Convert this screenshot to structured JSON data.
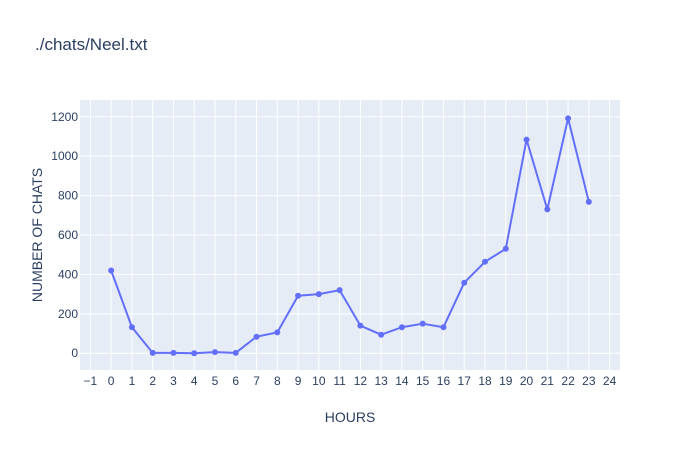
{
  "chart_data": {
    "type": "line",
    "title": "./chats/Neel.txt",
    "xlabel": "HOURS",
    "ylabel": "NUMBER OF CHATS",
    "xlim": [
      -1.5,
      24.5
    ],
    "ylim": [
      -85,
      1285
    ],
    "x_ticks": [
      -1,
      0,
      1,
      2,
      3,
      4,
      5,
      6,
      7,
      8,
      9,
      10,
      11,
      12,
      13,
      14,
      15,
      16,
      17,
      18,
      19,
      20,
      21,
      22,
      23,
      24
    ],
    "x_tick_labels": [
      "−1",
      "0",
      "1",
      "2",
      "3",
      "4",
      "5",
      "6",
      "7",
      "8",
      "9",
      "10",
      "11",
      "12",
      "13",
      "14",
      "15",
      "16",
      "17",
      "18",
      "19",
      "20",
      "21",
      "22",
      "23",
      "24"
    ],
    "y_ticks": [
      0,
      200,
      400,
      600,
      800,
      1000,
      1200
    ],
    "y_tick_labels": [
      "0",
      "200",
      "400",
      "600",
      "800",
      "1000",
      "1200"
    ],
    "grid": true,
    "series": [
      {
        "x": [
          0,
          1,
          2,
          3,
          4,
          5,
          6,
          7,
          8,
          9,
          10,
          11,
          12,
          13,
          14,
          15,
          16,
          17,
          18,
          19,
          20,
          21,
          22,
          23
        ],
        "values": [
          420,
          132,
          2,
          2,
          0,
          6,
          2,
          84,
          106,
          292,
          300,
          320,
          140,
          94,
          132,
          150,
          132,
          358,
          464,
          530,
          1084,
          730,
          1192,
          768
        ],
        "color": "#636efa"
      }
    ],
    "plot_bg_color": "#e5ecf6",
    "grid_color": "#ffffff"
  }
}
